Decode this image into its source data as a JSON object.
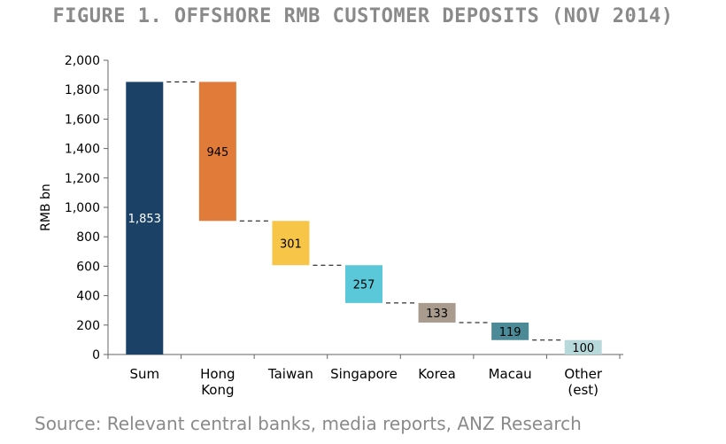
{
  "title": "FIGURE 1. OFFSHORE RMB CUSTOMER DEPOSITS (NOV 2014)",
  "source": "Source: Relevant central banks, media reports, ANZ Research",
  "chart_data": {
    "type": "bar",
    "subtype": "waterfall",
    "title": "FIGURE 1. OFFSHORE RMB CUSTOMER DEPOSITS (NOV 2014)",
    "ylabel": "RMB bn",
    "xlabel": "",
    "ylim": [
      0,
      2000
    ],
    "yticks": [
      "0",
      "200",
      "400",
      "600",
      "800",
      "1,000",
      "1,200",
      "1,400",
      "1,600",
      "1,800",
      "2,000"
    ],
    "grid": false,
    "categories": [
      [
        "Sum"
      ],
      [
        "Hong",
        "Kong"
      ],
      [
        "Taiwan"
      ],
      [
        "Singapore"
      ],
      [
        "Korea"
      ],
      [
        "Macau"
      ],
      [
        "Other",
        "(est)"
      ]
    ],
    "values": [
      1853,
      945,
      301,
      257,
      133,
      119,
      100
    ],
    "labels": [
      "1,853",
      "945",
      "301",
      "257",
      "133",
      "119",
      "100"
    ],
    "colors": [
      "#1b4266",
      "#e07b39",
      "#f7c548",
      "#5ac8d8",
      "#a99b8e",
      "#4b8a96",
      "#b8d9dc"
    ]
  }
}
